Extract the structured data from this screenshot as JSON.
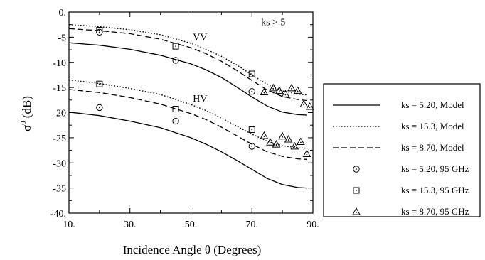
{
  "chart_data": {
    "type": "line",
    "xlabel": "Incidence Angle θ (Degrees)",
    "ylabel_main": "σ",
    "ylabel_sup": "0",
    "ylabel_unit": " (dB)",
    "xlim": [
      10,
      90
    ],
    "ylim": [
      -40,
      0
    ],
    "xticks": [
      10,
      30,
      50,
      70,
      90
    ],
    "xtick_labels": [
      "10.",
      "30.",
      "50.",
      "70.",
      "90."
    ],
    "yticks": [
      0,
      -5,
      -10,
      -15,
      -20,
      -25,
      -30,
      -35,
      -40
    ],
    "ytick_labels": [
      "0.",
      "-5",
      "-10",
      "-15",
      "-20",
      "-25",
      "-30",
      "-35",
      "-40."
    ],
    "grid": false,
    "legend_position": "right",
    "annotations": [
      {
        "text": "ks > 5",
        "x": 77,
        "y": -2.6
      },
      {
        "text": "VV",
        "x": 53,
        "y": -5.6
      },
      {
        "text": "HV",
        "x": 53,
        "y": -17.8
      }
    ],
    "series": [
      {
        "name": "ks = 5.20, Model",
        "style": "solid",
        "group": "VV",
        "x": [
          10,
          20,
          30,
          40,
          50,
          55,
          60,
          65,
          70,
          75,
          80,
          85,
          88
        ],
        "y": [
          -6.1,
          -6.6,
          -7.4,
          -8.6,
          -10.3,
          -11.5,
          -13.0,
          -14.9,
          -16.9,
          -18.7,
          -19.9,
          -20.4,
          -20.5
        ]
      },
      {
        "name": "ks = 15.3, Model",
        "style": "dotted",
        "group": "VV",
        "x": [
          10,
          20,
          30,
          40,
          50,
          55,
          60,
          65,
          70,
          75,
          80,
          85,
          88
        ],
        "y": [
          -2.5,
          -2.9,
          -3.5,
          -4.5,
          -6.2,
          -7.4,
          -8.8,
          -10.5,
          -12.5,
          -14.4,
          -15.7,
          -16.3,
          -16.5
        ]
      },
      {
        "name": "ks = 8.70, Model",
        "style": "dashed",
        "group": "VV",
        "x": [
          10,
          20,
          30,
          40,
          50,
          55,
          60,
          65,
          70,
          75,
          80,
          85,
          88
        ],
        "y": [
          -3.3,
          -3.7,
          -4.3,
          -5.4,
          -7.1,
          -8.3,
          -9.8,
          -11.6,
          -13.6,
          -15.5,
          -16.8,
          -17.4,
          -17.6
        ]
      },
      {
        "name": "ks = 5.20, Model",
        "style": "solid",
        "group": "HV",
        "x": [
          10,
          20,
          30,
          40,
          50,
          55,
          60,
          65,
          70,
          75,
          80,
          85,
          88
        ],
        "y": [
          -19.9,
          -20.6,
          -21.7,
          -23.0,
          -25.0,
          -26.3,
          -27.8,
          -29.5,
          -31.3,
          -33.1,
          -34.3,
          -34.9,
          -35.0
        ]
      },
      {
        "name": "ks = 15.3, Model",
        "style": "dotted",
        "group": "HV",
        "x": [
          10,
          20,
          30,
          40,
          50,
          55,
          60,
          65,
          70,
          75,
          80,
          85,
          88
        ],
        "y": [
          -13.5,
          -14.2,
          -15.2,
          -16.4,
          -18.4,
          -19.6,
          -21.1,
          -22.7,
          -24.3,
          -25.7,
          -26.6,
          -27.0,
          -27.1
        ]
      },
      {
        "name": "ks = 8.70, Model",
        "style": "dashed",
        "group": "HV",
        "x": [
          10,
          20,
          30,
          40,
          50,
          55,
          60,
          65,
          70,
          75,
          80,
          85,
          88
        ],
        "y": [
          -15.4,
          -16.0,
          -17.0,
          -18.3,
          -20.2,
          -21.4,
          -22.9,
          -24.6,
          -26.3,
          -27.8,
          -28.7,
          -29.2,
          -29.3
        ]
      },
      {
        "name": "ks = 5.20, 95 GHz",
        "marker": "circle-dot",
        "x": [
          20,
          45,
          70,
          20,
          45,
          70
        ],
        "y": [
          -4.0,
          -9.6,
          -15.8,
          -19.0,
          -21.7,
          -26.7
        ]
      },
      {
        "name": "ks = 15.3, 95 GHz",
        "marker": "square-dot",
        "x": [
          20,
          45,
          70,
          20,
          45,
          70
        ],
        "y": [
          -3.6,
          -6.8,
          -12.3,
          -14.3,
          -19.3,
          -23.4
        ]
      },
      {
        "name": "ks = 8.70, 95 GHz",
        "marker": "triangle-dot",
        "x": [
          74,
          77,
          79,
          81,
          83,
          85,
          87,
          89,
          74,
          76,
          78,
          80,
          82,
          84,
          86,
          88
        ],
        "y": [
          -15.9,
          -15.1,
          -15.6,
          -16.3,
          -15.1,
          -15.6,
          -18.3,
          -18.8,
          -24.6,
          -25.9,
          -26.3,
          -24.7,
          -25.3,
          -26.7,
          -25.8,
          -28.2
        ]
      }
    ]
  },
  "legend": {
    "items": [
      {
        "label": "ks = 5.20, Model",
        "kind": "line",
        "style": "solid"
      },
      {
        "label": "ks = 15.3, Model",
        "kind": "line",
        "style": "dotted"
      },
      {
        "label": "ks = 8.70, Model",
        "kind": "line",
        "style": "dashed"
      },
      {
        "label": "ks = 5.20, 95 GHz",
        "kind": "marker",
        "marker": "circle-dot"
      },
      {
        "label": "ks = 15.3, 95 GHz",
        "kind": "marker",
        "marker": "square-dot"
      },
      {
        "label": "ks = 8.70, 95 GHz",
        "kind": "marker",
        "marker": "triangle-dot"
      }
    ]
  },
  "colors": {
    "ink": "#000000",
    "background": "#ffffff"
  }
}
